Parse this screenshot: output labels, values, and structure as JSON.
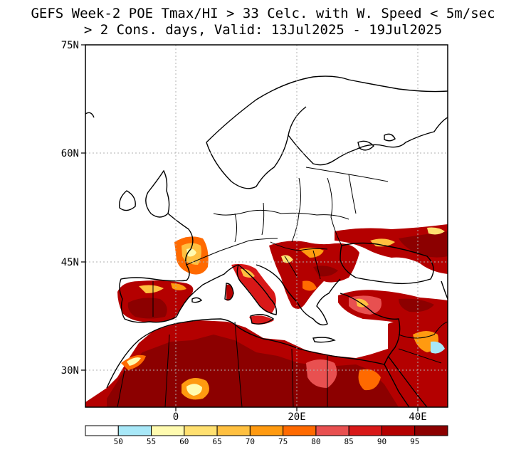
{
  "title": {
    "line1": "GEFS Week-2 POE Tmax/HI > 33 Celc. with W. Speed < 5m/sec",
    "line2": "> 2 Cons. days, Valid: 13Jul2025 - 19Jul2025"
  },
  "map": {
    "lat_labels": [
      "75N",
      "60N",
      "45N",
      "30N"
    ],
    "lon_labels": [
      "0",
      "20E",
      "40E"
    ],
    "grid": true,
    "region": "Europe / Mediterranean / North Africa"
  },
  "colorbar": {
    "labels": [
      "50",
      "55",
      "60",
      "65",
      "70",
      "75",
      "80",
      "85",
      "90",
      "95"
    ],
    "colors": [
      "#ffffff",
      "#a8e8f8",
      "#fffbb0",
      "#ffe070",
      "#ffc040",
      "#ff9a10",
      "#ff6a00",
      "#e85050",
      "#d81818",
      "#b40000",
      "#8c0000"
    ]
  }
}
